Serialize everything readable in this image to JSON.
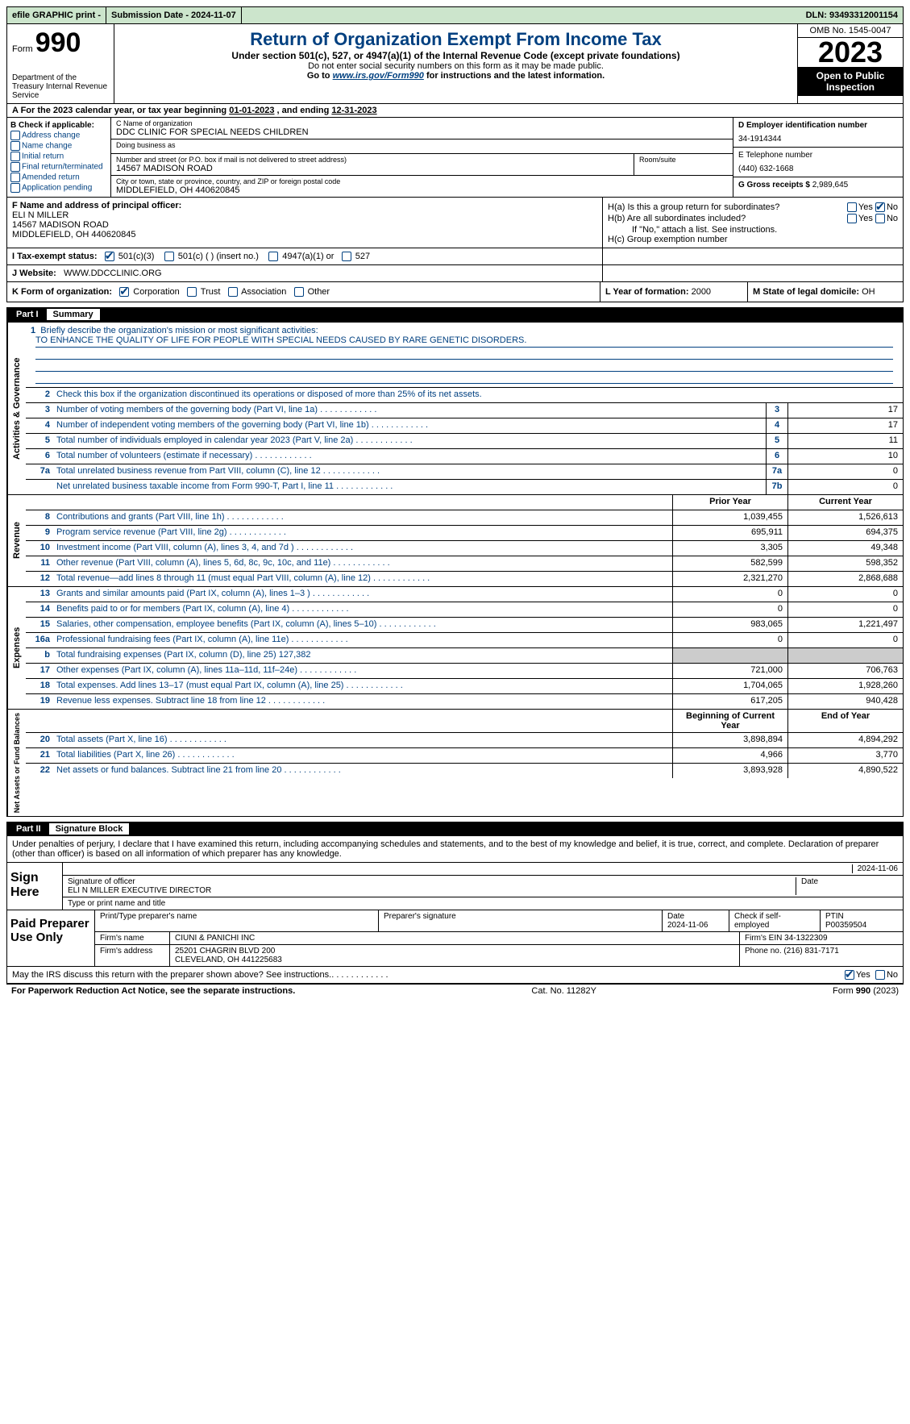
{
  "topbar": {
    "efile": "efile GRAPHIC print -",
    "submission": "Submission Date - 2024-11-07",
    "dln_label": "DLN:",
    "dln": "93493312001154"
  },
  "header": {
    "form_label": "Form",
    "form_number": "990",
    "dept": "Department of the Treasury Internal Revenue Service",
    "title": "Return of Organization Exempt From Income Tax",
    "subtitle": "Under section 501(c), 527, or 4947(a)(1) of the Internal Revenue Code (except private foundations)",
    "ssn_note": "Do not enter social security numbers on this form as it may be made public.",
    "goto_prefix": "Go to ",
    "goto_link": "www.irs.gov/Form990",
    "goto_suffix": " for instructions and the latest information.",
    "omb": "OMB No. 1545-0047",
    "year": "2023",
    "open": "Open to Public Inspection"
  },
  "row_a": {
    "prefix": "A For the 2023 calendar year, or tax year beginning ",
    "begin": "01-01-2023",
    "mid": "  , and ending ",
    "end": "12-31-2023"
  },
  "section_b": {
    "label": "B Check if applicable:",
    "items": [
      {
        "label": "Address change",
        "checked": false
      },
      {
        "label": "Name change",
        "checked": false
      },
      {
        "label": "Initial return",
        "checked": false
      },
      {
        "label": "Final return/terminated",
        "checked": false
      },
      {
        "label": "Amended return",
        "checked": false
      },
      {
        "label": "Application pending",
        "checked": false
      }
    ]
  },
  "section_c": {
    "name_label": "C Name of organization",
    "name": "DDC CLINIC FOR SPECIAL NEEDS CHILDREN",
    "dba_label": "Doing business as",
    "dba": "",
    "addr_label": "Number and street (or P.O. box if mail is not delivered to street address)",
    "addr": "14567 MADISON ROAD",
    "room_label": "Room/suite",
    "city_label": "City or town, state or province, country, and ZIP or foreign postal code",
    "city": "MIDDLEFIELD, OH  440620845"
  },
  "section_d": {
    "ein_label": "D Employer identification number",
    "ein": "34-1914344",
    "phone_label": "E Telephone number",
    "phone": "(440) 632-1668",
    "gross_label": "G Gross receipts $",
    "gross": "2,989,645"
  },
  "section_f": {
    "label": "F Name and address of principal officer:",
    "name": "ELI N MILLER",
    "addr1": "14567 MADISON ROAD",
    "addr2": "MIDDLEFIELD, OH  440620845"
  },
  "section_h": {
    "ha": "H(a)  Is this a group return for subordinates?",
    "hb": "H(b)  Are all subordinates included?",
    "hb_note": "If \"No,\" attach a list. See instructions.",
    "hc": "H(c)  Group exemption number",
    "yes": "Yes",
    "no": "No"
  },
  "section_i": {
    "label": "I   Tax-exempt status:",
    "opts": [
      "501(c)(3)",
      "501(c) (  ) (insert no.)",
      "4947(a)(1) or",
      "527"
    ]
  },
  "section_j": {
    "label": "J   Website:",
    "value": "WWW.DDCCLINIC.ORG"
  },
  "section_k": {
    "label": "K Form of organization:",
    "opts": [
      "Corporation",
      "Trust",
      "Association",
      "Other"
    ],
    "l_label": "L Year of formation:",
    "l_val": "2000",
    "m_label": "M State of legal domicile:",
    "m_val": "OH"
  },
  "part1": {
    "num": "Part I",
    "title": "Summary",
    "q1_label": "Briefly describe the organization's mission or most significant activities:",
    "q1_val": "TO ENHANCE THE QUALITY OF LIFE FOR PEOPLE WITH SPECIAL NEEDS CAUSED BY RARE GENETIC DISORDERS.",
    "q2_label": "Check this box        if the organization discontinued its operations or disposed of more than 25% of its net assets.",
    "governance": [
      {
        "n": "3",
        "d": "Number of voting members of the governing body (Part VI, line 1a)",
        "b": "3",
        "v": "17"
      },
      {
        "n": "4",
        "d": "Number of independent voting members of the governing body (Part VI, line 1b)",
        "b": "4",
        "v": "17"
      },
      {
        "n": "5",
        "d": "Total number of individuals employed in calendar year 2023 (Part V, line 2a)",
        "b": "5",
        "v": "11"
      },
      {
        "n": "6",
        "d": "Total number of volunteers (estimate if necessary)",
        "b": "6",
        "v": "10"
      },
      {
        "n": "7a",
        "d": "Total unrelated business revenue from Part VIII, column (C), line 12",
        "b": "7a",
        "v": "0"
      },
      {
        "n": "",
        "d": "Net unrelated business taxable income from Form 990-T, Part I, line 11",
        "b": "7b",
        "v": "0"
      }
    ],
    "prior_label": "Prior Year",
    "current_label": "Current Year",
    "revenue": [
      {
        "n": "8",
        "d": "Contributions and grants (Part VIII, line 1h)",
        "p": "1,039,455",
        "c": "1,526,613"
      },
      {
        "n": "9",
        "d": "Program service revenue (Part VIII, line 2g)",
        "p": "695,911",
        "c": "694,375"
      },
      {
        "n": "10",
        "d": "Investment income (Part VIII, column (A), lines 3, 4, and 7d )",
        "p": "3,305",
        "c": "49,348"
      },
      {
        "n": "11",
        "d": "Other revenue (Part VIII, column (A), lines 5, 6d, 8c, 9c, 10c, and 11e)",
        "p": "582,599",
        "c": "598,352"
      },
      {
        "n": "12",
        "d": "Total revenue—add lines 8 through 11 (must equal Part VIII, column (A), line 12)",
        "p": "2,321,270",
        "c": "2,868,688"
      }
    ],
    "expenses": [
      {
        "n": "13",
        "d": "Grants and similar amounts paid (Part IX, column (A), lines 1–3 )",
        "p": "0",
        "c": "0"
      },
      {
        "n": "14",
        "d": "Benefits paid to or for members (Part IX, column (A), line 4)",
        "p": "0",
        "c": "0"
      },
      {
        "n": "15",
        "d": "Salaries, other compensation, employee benefits (Part IX, column (A), lines 5–10)",
        "p": "983,065",
        "c": "1,221,497"
      },
      {
        "n": "16a",
        "d": "Professional fundraising fees (Part IX, column (A), line 11e)",
        "p": "0",
        "c": "0"
      },
      {
        "n": "b",
        "d": "Total fundraising expenses (Part IX, column (D), line 25) 127,382",
        "p": "shade",
        "c": "shade"
      },
      {
        "n": "17",
        "d": "Other expenses (Part IX, column (A), lines 11a–11d, 11f–24e)",
        "p": "721,000",
        "c": "706,763"
      },
      {
        "n": "18",
        "d": "Total expenses. Add lines 13–17 (must equal Part IX, column (A), line 25)",
        "p": "1,704,065",
        "c": "1,928,260"
      },
      {
        "n": "19",
        "d": "Revenue less expenses. Subtract line 18 from line 12",
        "p": "617,205",
        "c": "940,428"
      }
    ],
    "begin_label": "Beginning of Current Year",
    "end_label": "End of Year",
    "netassets": [
      {
        "n": "20",
        "d": "Total assets (Part X, line 16)",
        "p": "3,898,894",
        "c": "4,894,292"
      },
      {
        "n": "21",
        "d": "Total liabilities (Part X, line 26)",
        "p": "4,966",
        "c": "3,770"
      },
      {
        "n": "22",
        "d": "Net assets or fund balances. Subtract line 21 from line 20",
        "p": "3,893,928",
        "c": "4,890,522"
      }
    ]
  },
  "part2": {
    "num": "Part II",
    "title": "Signature Block",
    "declaration": "Under penalties of perjury, I declare that I have examined this return, including accompanying schedules and statements, and to the best of my knowledge and belief, it is true, correct, and complete. Declaration of preparer (other than officer) is based on all information of which preparer has any knowledge."
  },
  "sign": {
    "label": "Sign Here",
    "date": "2024-11-06",
    "sig_label": "Signature of officer",
    "officer": "ELI N MILLER  EXECUTIVE DIRECTOR",
    "type_label": "Type or print name and title",
    "date_label": "Date"
  },
  "paid": {
    "label": "Paid Preparer Use Only",
    "h1": "Print/Type preparer's name",
    "h2": "Preparer's signature",
    "h3": "Date",
    "h3v": "2024-11-06",
    "h4": "Check        if self-employed",
    "h5": "PTIN",
    "h5v": "P00359504",
    "firm_name_label": "Firm's name",
    "firm_name": "CIUNI & PANICHI INC",
    "firm_ein_label": "Firm's EIN",
    "firm_ein": "34-1322309",
    "firm_addr_label": "Firm's address",
    "firm_addr1": "25201 CHAGRIN BLVD 200",
    "firm_addr2": "CLEVELAND, OH  441225683",
    "phone_label": "Phone no.",
    "phone": "(216) 831-7171"
  },
  "discuss": {
    "text": "May the IRS discuss this return with the preparer shown above? See instructions.",
    "yes": "Yes",
    "no": "No"
  },
  "footer": {
    "left": "For Paperwork Reduction Act Notice, see the separate instructions.",
    "mid": "Cat. No. 11282Y",
    "right_form": "Form",
    "right_num": "990",
    "right_year": "(2023)"
  }
}
